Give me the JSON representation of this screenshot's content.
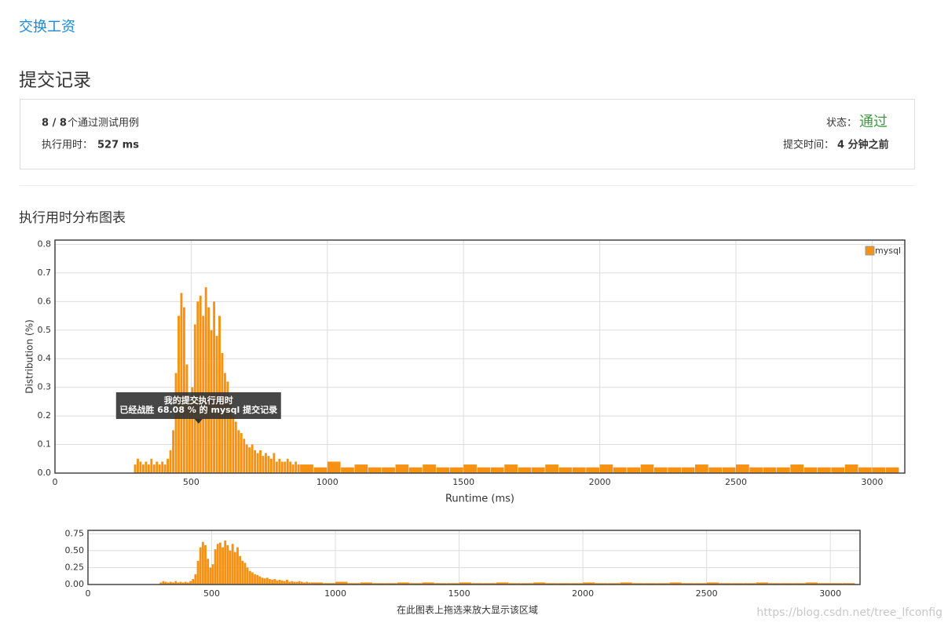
{
  "header": {
    "link": "交换工资",
    "title": "提交记录"
  },
  "summary": {
    "passed": "8 / 8",
    "passed_label": "个通过测试用例",
    "runtime_label": "执行用时：",
    "runtime": "527 ms",
    "status_label": "状态：",
    "status": "通过",
    "time_label": "提交时间：",
    "time": "4 分钟之前"
  },
  "section_title": "执行用时分布图表",
  "chart_data": {
    "type": "histogram",
    "xlabel": "Runtime (ms)",
    "ylabel": "Distribution (%)",
    "color": "#f59213",
    "grid": true,
    "legend": "top-right",
    "series_name": "mysql",
    "bins": [
      290,
      300,
      310,
      320,
      330,
      340,
      350,
      360,
      370,
      380,
      390,
      400,
      410,
      420,
      430,
      440,
      450,
      460,
      470,
      480,
      490,
      500,
      510,
      520,
      530,
      540,
      550,
      560,
      570,
      580,
      590,
      600,
      610,
      620,
      630,
      640,
      650,
      660,
      670,
      680,
      690,
      700,
      710,
      720,
      730,
      740,
      750,
      760,
      770,
      780,
      790,
      800,
      810,
      820,
      830,
      840,
      850,
      860,
      870,
      880,
      890,
      900,
      950,
      1000,
      1050,
      1100,
      1150,
      1200,
      1250,
      1300,
      1350,
      1400,
      1450,
      1500,
      1550,
      1600,
      1650,
      1700,
      1750,
      1800,
      1850,
      1900,
      1950,
      2000,
      2050,
      2100,
      2150,
      2200,
      2250,
      2300,
      2350,
      2400,
      2450,
      2500,
      2550,
      2600,
      2650,
      2700,
      2750,
      2800,
      2850,
      2900,
      2950,
      3000,
      3050,
      3100
    ],
    "values": [
      0.03,
      0.05,
      0.04,
      0.03,
      0.04,
      0.03,
      0.05,
      0.03,
      0.04,
      0.03,
      0.04,
      0.03,
      0.05,
      0.08,
      0.15,
      0.35,
      0.55,
      0.63,
      0.58,
      0.38,
      0.25,
      0.3,
      0.52,
      0.6,
      0.62,
      0.55,
      0.65,
      0.58,
      0.5,
      0.6,
      0.48,
      0.55,
      0.42,
      0.35,
      0.32,
      0.25,
      0.2,
      0.18,
      0.15,
      0.14,
      0.12,
      0.1,
      0.09,
      0.1,
      0.08,
      0.07,
      0.08,
      0.06,
      0.07,
      0.06,
      0.05,
      0.07,
      0.04,
      0.05,
      0.04,
      0.04,
      0.05,
      0.04,
      0.03,
      0.04,
      0.03,
      0.03,
      0.02,
      0.04,
      0.02,
      0.03,
      0.02,
      0.02,
      0.03,
      0.02,
      0.03,
      0.02,
      0.02,
      0.03,
      0.02,
      0.02,
      0.03,
      0.02,
      0.02,
      0.03,
      0.02,
      0.02,
      0.02,
      0.03,
      0.02,
      0.02,
      0.03,
      0.02,
      0.02,
      0.02,
      0.03,
      0.02,
      0.02,
      0.03,
      0.02,
      0.02,
      0.02,
      0.03,
      0.02,
      0.02,
      0.02,
      0.03,
      0.02,
      0.02,
      0.02
    ],
    "xlim": [
      0,
      3120
    ],
    "xticks": [
      0,
      500,
      1000,
      1500,
      2000,
      2500,
      3000
    ],
    "ylim": [
      0,
      0.815
    ],
    "yticks": [
      {
        "value": 0,
        "label": "0.0"
      },
      0.1,
      0.2,
      0.3,
      0.4,
      0.5,
      0.6,
      0.7,
      0.8
    ],
    "annotation": {
      "x": 527,
      "title": "我的提交执行用时",
      "text": "已经战胜 68.08 % 的 mysql 提交记录"
    },
    "navigator": {
      "ylim": [
        0,
        0.8
      ],
      "yticks": [
        {
          "value": 0,
          "label": "0.00"
        },
        {
          "value": 0.25,
          "label": "0.25"
        },
        {
          "value": 0.5,
          "label": "0.50"
        },
        {
          "value": 0.75,
          "label": "0.75"
        }
      ],
      "caption": "在此图表上拖选来放大显示该区域"
    }
  },
  "watermark": "https://blog.csdn.net/tree_lfconfig"
}
